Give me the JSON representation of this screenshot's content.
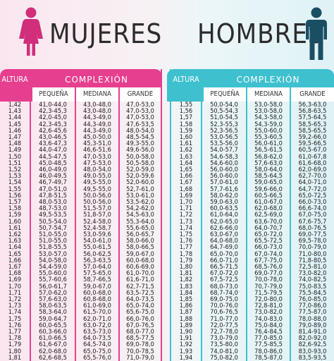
{
  "header": {
    "women_title": "MUJERES",
    "men_title": "HOMBRES"
  },
  "colors": {
    "women": "#e63f8f",
    "men": "#3ec0cf",
    "women_icon": "#d12e7c",
    "men_icon": "#1a4e63"
  },
  "tables": {
    "women": {
      "height_label": "ALTURA",
      "build_label": "COMPLEXIÓN",
      "columns": [
        "PEQUEÑA",
        "MEDIANA",
        "GRANDE"
      ],
      "rows": [
        [
          "1,42",
          "41,0-44,0",
          "43,0-48,0",
          "47,0-53,0"
        ],
        [
          "1,43",
          "42,3-45,3",
          "43,0-48,0",
          "47,0-53,0"
        ],
        [
          "1,44",
          "42,0-45,0",
          "44,3-49,0",
          "47,0-53,0"
        ],
        [
          "1,45",
          "42,3-45,3",
          "44,3-49,0",
          "47,6-53,5"
        ],
        [
          "1,46",
          "42,6-45,6",
          "44,3-49,0",
          "48,0-54,0"
        ],
        [
          "1,47",
          "43,0-46,5",
          "45,0-50,0",
          "48,5-54,5"
        ],
        [
          "1,48",
          "43,6-47,3",
          "45,3-51,0",
          "49,3-55,0"
        ],
        [
          "1,49",
          "44,0-47,0",
          "46,6-51,6",
          "49,6-56,0"
        ],
        [
          "1,50",
          "44,5-47,5",
          "47,0-53,0",
          "50,0-58,0"
        ],
        [
          "1,51",
          "45,0-48,5",
          "47,5-53,0",
          "50,5-58,0"
        ],
        [
          "1,52",
          "46,0-49,0",
          "48,0-54,0",
          "52,0-59,0"
        ],
        [
          "1,53",
          "46,0-49,5",
          "49,0-55,0",
          "52,0-59,6"
        ],
        [
          "1,54",
          "46,7-49,7",
          "49,5-55,0",
          "52,0-60,0"
        ],
        [
          "1,55",
          "47,0-51,0",
          "49,5-55,0",
          "52,7-61,0"
        ],
        [
          "1,56",
          "47,8-51,5",
          "50,0-56,0",
          "53,0-61,0"
        ],
        [
          "1,57",
          "48,0-53,0",
          "50,0-56,0",
          "53,5-62,0"
        ],
        [
          "1,58",
          "48,7-53,0",
          "51,5-57,0",
          "54,2-62,0"
        ],
        [
          "1,59",
          "49,5-53,5",
          "51,8-57,0",
          "54,5-63,0"
        ],
        [
          "1,60",
          "50,5-54,0",
          "52,4-58,0",
          "55,3-64,0"
        ],
        [
          "1,61",
          "50,7-54,7",
          "52,4-58,7",
          "55,6-65,0"
        ],
        [
          "1,62",
          "51,0-55,0",
          "53,0-59,6",
          "56,0-65,7"
        ],
        [
          "1,63",
          "51,0-55,0",
          "54,0-61,0",
          "58,0-66,0"
        ],
        [
          "1,64",
          "51,8-55,5",
          "55,0-61,5",
          "58,0-66,5"
        ],
        [
          "1,65",
          "53,0-57,0",
          "56,0-62,5",
          "59,0-67,0"
        ],
        [
          "1,66",
          "54,0-58,0",
          "56,3-63,5",
          "60,0-68,0"
        ],
        [
          "1,67",
          "54,4-59,0",
          "57,0-64,0",
          "60,6-69,0"
        ],
        [
          "1,68",
          "55,0-60,0",
          "57,5-65,0",
          "61,0-70,0"
        ],
        [
          "1,69",
          "55,7-60,6",
          "58,7-66,5",
          "61,6-71,0"
        ],
        [
          "1,70",
          "56,0-61,7",
          "59,0-67,0",
          "62,7-71,5"
        ],
        [
          "1,71",
          "57,0-62,0",
          "60,0-68,0",
          "63,5-72,5"
        ],
        [
          "1,72",
          "57,6-63,0",
          "60,8-68,0",
          "64,0-73,5"
        ],
        [
          "1,73",
          "58,0-63,5",
          "61,0-69,0",
          "65,0-74,0"
        ],
        [
          "1,74",
          "58,3-64,0",
          "61,5-70,0",
          "65,6-75,0"
        ],
        [
          "1,75",
          "59,0-64,7",
          "62,0-71,0",
          "66,0-76,0"
        ],
        [
          "1,76",
          "60,0-65,5",
          "63,0-72,0",
          "67,0-76,5"
        ],
        [
          "1,77",
          "60,3-66,0",
          "63,5-73,0",
          "68,0-77,0"
        ],
        [
          "1,78",
          "61,0-66,5",
          "64,0-73,5",
          "68,5-77,5"
        ],
        [
          "1,79",
          "61,6-67,0",
          "64,5-74,0",
          "69,0-78,0"
        ],
        [
          "1,80",
          "62,0-68,0",
          "65,0-75,0",
          "70,0-78,5"
        ],
        [
          "1,81",
          "62,6-68,5",
          "65,5-76,0",
          "71,0-79,0"
        ]
      ]
    },
    "men": {
      "height_label": "ALTURA",
      "build_label": "COMPLEXIÓN",
      "columns": [
        "PEQUEÑA",
        "MEDIANA",
        "GRANDE"
      ],
      "rows": [
        [
          "1,55",
          "50,0-54,0",
          "53,0-58,0",
          "56,3-63,0"
        ],
        [
          "1,56",
          "50,5-54,3",
          "53,0-58,0",
          "56,8-63,5"
        ],
        [
          "1,57",
          "51,0-54,5",
          "54,3-58,0",
          "57,5-64,5"
        ],
        [
          "1,58",
          "52,3-55,3",
          "54,3-59,0",
          "58,5-65,3"
        ],
        [
          "1,59",
          "52,3-56,5",
          "55,0-60,0",
          "58,5-65,5"
        ],
        [
          "1,60",
          "53,0-56,5",
          "55,3-60,5",
          "59,2-66,0"
        ],
        [
          "1,61",
          "53,5-56,0",
          "56,0-61,0",
          "59,5-66,5"
        ],
        [
          "1,62",
          "54,0-57,7",
          "56,5-61,5",
          "60,5-67,0"
        ],
        [
          "1,63",
          "54,6-58,3",
          "56,8-62,0",
          "61,0-67,8"
        ],
        [
          "1,64",
          "54,6-60,0",
          "57,6-63,0",
          "61,6-68,0"
        ],
        [
          "1,65",
          "56,0-60,0",
          "58,0-64,0",
          "62,0-69,0"
        ],
        [
          "1,66",
          "56,0-60,0",
          "58,5-64,5",
          "62,7-70,0"
        ],
        [
          "1,67",
          "57,0-61,0",
          "59,0-65,0",
          "64,0-71,0"
        ],
        [
          "1,68",
          "57,7-61,6",
          "59,6-66,0",
          "64,7-72,0"
        ],
        [
          "1,69",
          "58,0-62,0",
          "60,5-66,5",
          "65,0-72,5"
        ],
        [
          "1,70",
          "59,0-63,0",
          "61,0-67,0",
          "66,0-73,0"
        ],
        [
          "1,71",
          "60,0-63,5",
          "62,0-68,0",
          "66,6-74,0"
        ],
        [
          "1,72",
          "61,0-64,0",
          "62,5-69,0",
          "67,0-75,0"
        ],
        [
          "1,73",
          "62,0-65,0",
          "63,6-70,0",
          "67,6-75,7"
        ],
        [
          "1,74",
          "62,6-66,0",
          "64,0-70,7",
          "68,0-76,5"
        ],
        [
          "1,75",
          "63,0-67,0",
          "65,0-72,0",
          "69,0-77,5"
        ],
        [
          "1,76",
          "64,0-68,0",
          "65,5-72,5",
          "69,5-78,0"
        ],
        [
          "1,77",
          "64,7-69,0",
          "66,0-73,0",
          "70,0-79,0"
        ],
        [
          "1,78",
          "65,0-70,0",
          "67,0-74,0",
          "71,0-80,0"
        ],
        [
          "1,79",
          "66,0-71,0",
          "67,7-75,0",
          "71,8-80,5"
        ],
        [
          "1,80",
          "66,5-71,5",
          "68,5-76,0",
          "72,5-81,0"
        ],
        [
          "1,81",
          "67,0-72,0",
          "69,0-77,0",
          "73,0-82,0"
        ],
        [
          "1,82",
          "67,5-72,5",
          "70,0-78,0",
          "74,0-82,5"
        ],
        [
          "1,83",
          "68,0-73,0",
          "70,7-79,0",
          "75,0-83,5"
        ],
        [
          "1,84",
          "68,7-74,0",
          "71,5-79,5",
          "75,5-84,5"
        ],
        [
          "1,85",
          "69,0-75,0",
          "72,0-80,0",
          "76,0-85,0"
        ],
        [
          "1,86",
          "70,0-76,0",
          "72,8-81,0",
          "77,0-86,0"
        ],
        [
          "1,87",
          "70,6-76,5",
          "73,0-82,0",
          "77,5-87,0"
        ],
        [
          "1,88",
          "71,0-77,0",
          "74,0-83,0",
          "78,0-88,0"
        ],
        [
          "1,89",
          "72,0-77,5",
          "75,0-84,0",
          "79,0-89,0"
        ],
        [
          "1,90",
          "72,7-78,0",
          "76,4-84,5",
          "81,4-91,0"
        ],
        [
          "1,91",
          "73,0-79,0",
          "77,0-85,0",
          "82,0-92,0"
        ],
        [
          "1,92",
          "73,5-80,0",
          "77,5-85,5",
          "82,6-92,5"
        ],
        [
          "1,93",
          "74,0-81,0",
          "78,0-86,0",
          "83,0-93,0"
        ],
        [
          "1,94",
          "75,0-82,0",
          "78,5-87,0",
          "83,5-93,5"
        ]
      ]
    }
  }
}
